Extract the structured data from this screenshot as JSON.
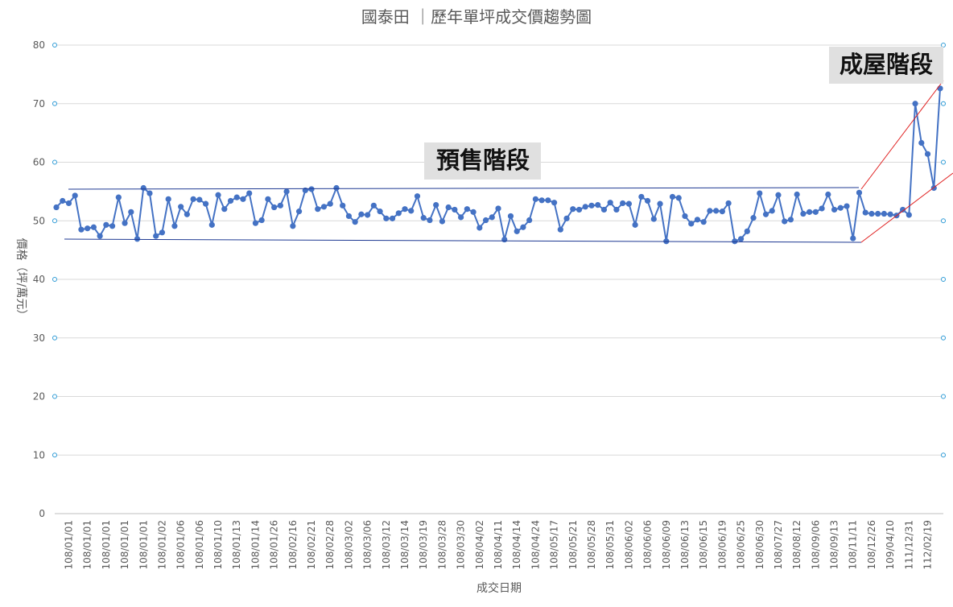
{
  "chart_data": {
    "type": "line",
    "title": "國泰田 ｜歷年單坪成交價趨勢圖",
    "y_label": "價格（坪/萬元）",
    "x_label": "成交日期",
    "annotations": [
      "預售階段",
      "成屋階段"
    ],
    "ylim": [
      0,
      80
    ],
    "yticks": [
      0,
      10,
      20,
      30,
      40,
      50,
      60,
      70,
      80
    ],
    "grid": true,
    "categories": [
      null,
      null,
      "108/01/01",
      null,
      null,
      "108/01/01",
      null,
      null,
      "108/01/01",
      null,
      null,
      "108/01/01",
      null,
      null,
      "108/01/01",
      null,
      null,
      "108/01/02",
      null,
      null,
      "108/01/06",
      null,
      null,
      "108/01/06",
      null,
      null,
      "108/01/10",
      null,
      null,
      "108/01/13",
      null,
      null,
      "108/01/14",
      null,
      null,
      "108/01/26",
      null,
      null,
      "108/02/16",
      null,
      null,
      "108/02/21",
      null,
      null,
      "108/02/28",
      null,
      null,
      "108/03/02",
      null,
      null,
      "108/03/06",
      null,
      null,
      "108/03/12",
      null,
      null,
      "108/03/14",
      null,
      null,
      "108/03/19",
      null,
      null,
      "108/03/28",
      null,
      null,
      "108/03/30",
      null,
      null,
      "108/04/02",
      null,
      null,
      "108/04/11",
      null,
      null,
      "108/04/14",
      null,
      null,
      "108/04/24",
      null,
      null,
      "108/05/17",
      null,
      null,
      "108/05/21",
      null,
      null,
      "108/05/28",
      null,
      null,
      "108/05/31",
      null,
      null,
      "108/06/02",
      null,
      null,
      "108/06/06",
      null,
      null,
      "108/06/09",
      null,
      null,
      "108/06/13",
      null,
      null,
      "108/06/15",
      null,
      null,
      "108/06/19",
      null,
      null,
      "108/06/25",
      null,
      null,
      "108/06/30",
      null,
      null,
      "108/07/27",
      null,
      null,
      "108/08/12",
      null,
      null,
      "108/09/06",
      null,
      null,
      "108/09/13",
      null,
      null,
      "108/11/11",
      null,
      null,
      "108/12/26",
      null,
      null,
      "109/04/10",
      null,
      null,
      "111/12/31",
      null,
      null,
      "112/02/19",
      null,
      null
    ],
    "series": [
      {
        "color": "#4472c4",
        "values": [
          52.3,
          53.4,
          53.0,
          54.3,
          48.5,
          48.7,
          48.9,
          47.4,
          49.3,
          49.1,
          54.0,
          49.6,
          51.5,
          46.9,
          55.6,
          54.7,
          47.4,
          48.0,
          53.7,
          49.1,
          52.4,
          51.1,
          53.7,
          53.6,
          52.9,
          49.3,
          54.4,
          52.0,
          53.4,
          54.0,
          53.7,
          54.7,
          49.6,
          50.1,
          53.7,
          52.3,
          52.6,
          55.0,
          49.1,
          51.6,
          55.2,
          55.4,
          52.0,
          52.4,
          52.9,
          55.6,
          52.6,
          50.8,
          49.8,
          51.1,
          51.0,
          52.6,
          51.6,
          50.4,
          50.4,
          51.3,
          52.0,
          51.7,
          54.2,
          50.5,
          50.1,
          52.7,
          49.9,
          52.3,
          51.9,
          50.6,
          52.0,
          51.5,
          48.8,
          50.1,
          50.6,
          52.1,
          46.8,
          50.8,
          48.2,
          48.9,
          50.1,
          53.7,
          53.5,
          53.5,
          53.1,
          48.5,
          50.4,
          52.0,
          51.9,
          52.4,
          52.6,
          52.7,
          51.9,
          53.1,
          51.9,
          53.0,
          52.9,
          49.3,
          54.1,
          53.4,
          50.3,
          52.9,
          46.5,
          54.1,
          53.9,
          50.8,
          49.5,
          50.2,
          49.8,
          51.7,
          51.7,
          51.6,
          53.0,
          46.5,
          46.9,
          48.2,
          50.5,
          54.7,
          51.1,
          51.7,
          54.4,
          49.9,
          50.2,
          54.5,
          51.2,
          51.5,
          51.5,
          52.1,
          54.5,
          51.9,
          52.2,
          52.5,
          47.0,
          54.8,
          51.4,
          51.2,
          51.2,
          51.2,
          51.1,
          50.9,
          51.9,
          51.0,
          70.0,
          63.3,
          61.4,
          55.6,
          72.6
        ]
      }
    ]
  }
}
